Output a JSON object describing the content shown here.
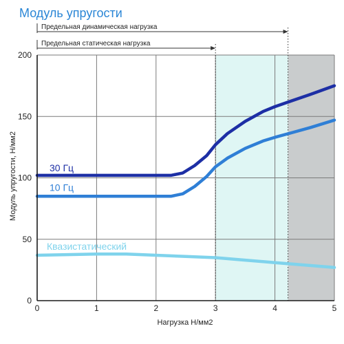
{
  "chart_data": {
    "type": "line",
    "title": "Модуль упругости",
    "xlabel": "Нагрузка Н/мм2",
    "ylabel": "Модуль упругости, Н/мм2",
    "xlim": [
      0,
      5
    ],
    "ylim": [
      0,
      200
    ],
    "x_ticks": [
      "0",
      "1",
      "2",
      "3",
      "4",
      "5"
    ],
    "y_ticks": [
      "0",
      "50",
      "100",
      "150",
      "200"
    ],
    "grid": true,
    "limits": [
      {
        "label": "Предельная статическая нагрузка",
        "x": 3.0
      },
      {
        "label": "Предельная динамическая нагрузка",
        "x": 4.22
      }
    ],
    "shaded_regions": [
      {
        "from": 3.0,
        "to": 4.22,
        "color": "#dff6f4"
      },
      {
        "from": 4.22,
        "to": 5.0,
        "color": "#c9cccd"
      }
    ],
    "series": [
      {
        "name": "30 Гц",
        "color": "#1d2fa5",
        "x": [
          0,
          2.25,
          2.45,
          2.65,
          2.85,
          3.0,
          3.2,
          3.5,
          3.8,
          4.0,
          4.3,
          4.6,
          5.0
        ],
        "values": [
          102,
          102,
          104,
          110,
          118,
          127,
          136,
          146,
          154,
          158,
          163,
          168,
          175
        ]
      },
      {
        "name": "10 Гц",
        "color": "#2f7fd6",
        "x": [
          0,
          2.25,
          2.45,
          2.65,
          2.85,
          3.0,
          3.2,
          3.5,
          3.8,
          4.0,
          4.3,
          4.6,
          5.0
        ],
        "values": [
          85,
          85,
          87,
          93,
          101,
          109,
          116,
          124,
          130,
          133,
          137,
          141,
          147
        ]
      },
      {
        "name": "Квазистатический",
        "color": "#7fd3ec",
        "x": [
          0,
          0.5,
          1.0,
          1.5,
          2.0,
          2.5,
          3.0,
          3.5,
          4.0,
          4.5,
          5.0
        ],
        "values": [
          37,
          37.5,
          38,
          38,
          37,
          36,
          35,
          33,
          31,
          29,
          27
        ]
      }
    ]
  },
  "colors": {
    "title": "#2a86d6",
    "axis": "#1a1a1a",
    "grid": "#7a7a7a",
    "limit_line": "#333333"
  }
}
